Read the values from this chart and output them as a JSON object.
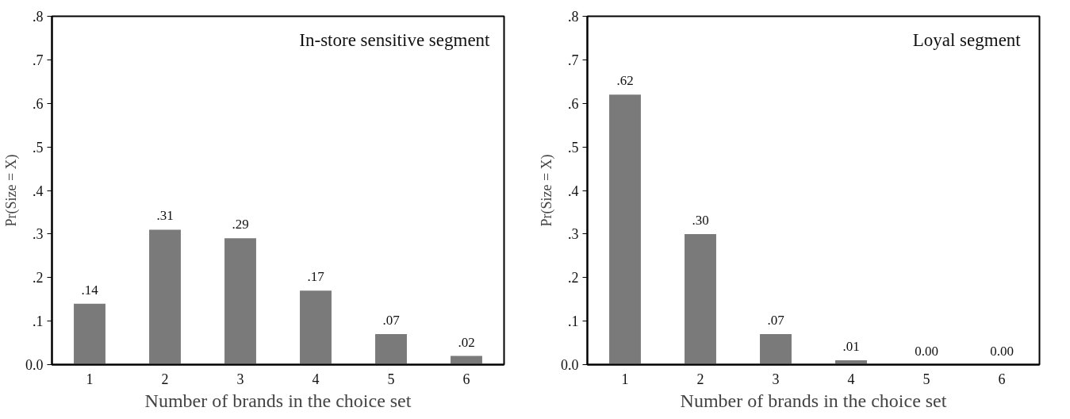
{
  "chart_data": [
    {
      "type": "bar",
      "title": "In-store sensitive segment",
      "xlabel": "Number of brands in the choice set",
      "ylabel": "Pr(Size = X)",
      "categories": [
        "1",
        "2",
        "3",
        "4",
        "5",
        "6"
      ],
      "values": [
        0.14,
        0.31,
        0.29,
        0.17,
        0.07,
        0.02
      ],
      "value_labels": [
        ".14",
        ".31",
        ".29",
        ".17",
        ".07",
        ".02"
      ],
      "color": "#7a7a7a",
      "ylim": [
        0,
        0.8
      ],
      "yticks": [
        {
          "value": 0,
          "label": "0.0"
        },
        {
          "value": 0.1,
          "label": ".1"
        },
        {
          "value": 0.2,
          "label": ".2"
        },
        {
          "value": 0.3,
          "label": ".3"
        },
        {
          "value": 0.4,
          "label": ".4"
        },
        {
          "value": 0.5,
          "label": ".5"
        },
        {
          "value": 0.6,
          "label": ".6"
        },
        {
          "value": 0.7,
          "label": ".7"
        },
        {
          "value": 0.8,
          "label": ".8"
        }
      ]
    },
    {
      "type": "bar",
      "title": "Loyal  segment",
      "xlabel": "Number of brands in the choice set",
      "ylabel": "Pr(Size = X)",
      "categories": [
        "1",
        "2",
        "3",
        "4",
        "5",
        "6"
      ],
      "values": [
        0.62,
        0.3,
        0.07,
        0.01,
        0.0,
        0.0
      ],
      "value_labels": [
        ".62",
        ".30",
        ".07",
        ".01",
        "0.00",
        "0.00"
      ],
      "color": "#7a7a7a",
      "ylim": [
        0,
        0.8
      ],
      "yticks": [
        {
          "value": 0,
          "label": "0.0"
        },
        {
          "value": 0.1,
          "label": ".1"
        },
        {
          "value": 0.2,
          "label": ".2"
        },
        {
          "value": 0.3,
          "label": ".3"
        },
        {
          "value": 0.4,
          "label": ".4"
        },
        {
          "value": 0.5,
          "label": ".5"
        },
        {
          "value": 0.6,
          "label": ".6"
        },
        {
          "value": 0.7,
          "label": ".7"
        },
        {
          "value": 0.8,
          "label": ".8"
        }
      ]
    }
  ]
}
